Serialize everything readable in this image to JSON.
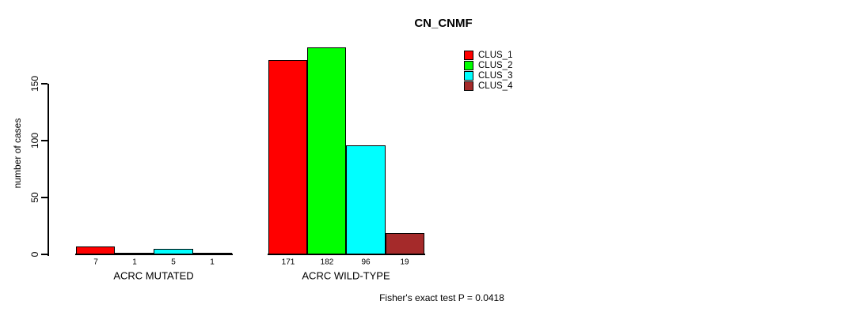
{
  "colors": {
    "background": "#ffffff",
    "axis": "#000000",
    "text": "#000000"
  },
  "chart_data": {
    "type": "bar",
    "title": "CN_CNMF",
    "xlabel": "",
    "ylabel": "number of cases",
    "categories": [
      "ACRC MUTATED",
      "ACRC WILD-TYPE"
    ],
    "series": [
      {
        "name": "CLUS_1",
        "color": "#FF0000",
        "values": [
          7,
          171
        ]
      },
      {
        "name": "CLUS_2",
        "color": "#00FF00",
        "values": [
          1,
          182
        ]
      },
      {
        "name": "CLUS_3",
        "color": "#00FFFF",
        "values": [
          5,
          96
        ]
      },
      {
        "name": "CLUS_4",
        "color": "#A52A2A",
        "values": [
          1,
          19
        ]
      }
    ],
    "bar_value_labels": [
      [
        7,
        1,
        5,
        1
      ],
      [
        171,
        182,
        96,
        19
      ]
    ],
    "yticks": [
      0,
      50,
      100,
      150
    ],
    "ylim": [
      0,
      183
    ],
    "grid": false,
    "legend_position": "top-right",
    "annotation": "Fisher's exact test P = 0.0418"
  }
}
